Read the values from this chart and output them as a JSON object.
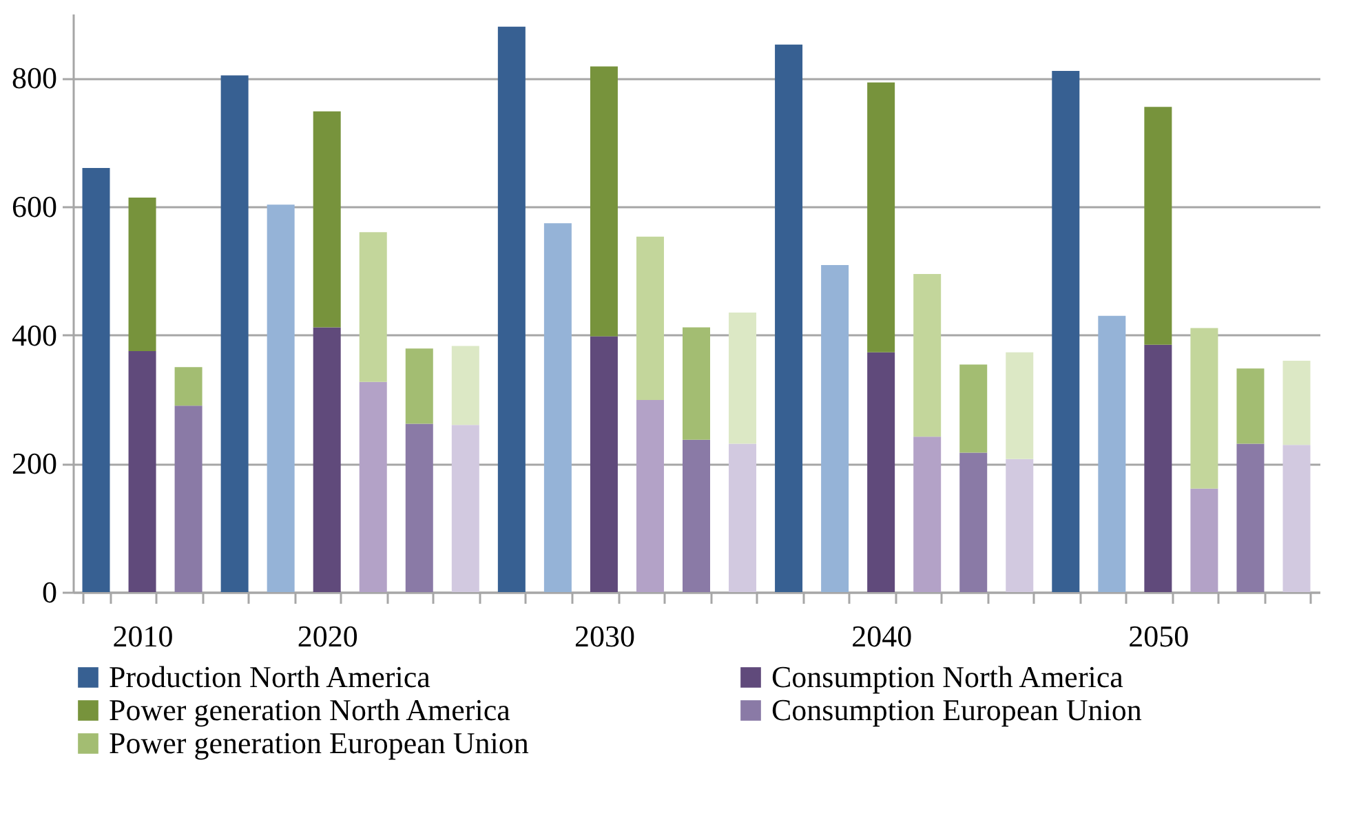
{
  "chart_data": {
    "type": "bar",
    "stacked": true,
    "categories": [
      null,
      "2010",
      null,
      null,
      null,
      "2020",
      null,
      null,
      null,
      null,
      null,
      "2030",
      null,
      null,
      null,
      null,
      null,
      "2040",
      null,
      null,
      null,
      null,
      null,
      "2050",
      null,
      null,
      null
    ],
    "ylim": [
      0,
      900
    ],
    "yticks": [
      0,
      200,
      400,
      600,
      800
    ],
    "grid": "y",
    "legend": "bottom",
    "series": [
      {
        "name": "Production North America",
        "color": "#376092",
        "values": [
          660,
          null,
          null,
          804,
          null,
          null,
          null,
          null,
          null,
          880,
          null,
          null,
          null,
          null,
          null,
          852,
          null,
          null,
          null,
          null,
          null,
          811,
          null,
          null,
          null,
          null,
          null
        ]
      },
      {
        "color": "#95b3d7",
        "values": [
          null,
          null,
          null,
          null,
          603,
          null,
          null,
          null,
          null,
          null,
          574,
          null,
          null,
          null,
          null,
          null,
          509,
          null,
          null,
          null,
          null,
          null,
          430,
          null,
          null,
          null,
          null
        ]
      },
      {
        "name": "Consumption North America",
        "color": "#604a7b",
        "values": [
          null,
          375,
          null,
          null,
          null,
          412,
          null,
          null,
          null,
          null,
          null,
          398,
          null,
          null,
          null,
          null,
          null,
          373,
          null,
          null,
          null,
          null,
          null,
          385,
          null,
          null,
          null
        ]
      },
      {
        "name": "Power generation North America",
        "color": "#77933c",
        "values": [
          null,
          239,
          null,
          null,
          null,
          336,
          null,
          null,
          null,
          null,
          null,
          420,
          null,
          null,
          null,
          null,
          null,
          420,
          null,
          null,
          null,
          null,
          null,
          370,
          null,
          null,
          null
        ]
      },
      {
        "color": "#b3a2c7",
        "values": [
          null,
          null,
          null,
          null,
          null,
          null,
          327,
          null,
          null,
          null,
          null,
          null,
          299,
          null,
          null,
          null,
          null,
          null,
          242,
          null,
          null,
          null,
          null,
          null,
          161,
          null,
          null
        ]
      },
      {
        "color": "#c3d69b",
        "values": [
          null,
          null,
          null,
          null,
          null,
          null,
          233,
          null,
          null,
          null,
          null,
          null,
          254,
          null,
          null,
          null,
          null,
          null,
          253,
          null,
          null,
          null,
          null,
          null,
          250,
          null,
          null
        ]
      },
      {
        "name": "Consumption European Union",
        "color": "#8a7aa6",
        "values": [
          null,
          null,
          290,
          null,
          null,
          null,
          null,
          262,
          null,
          null,
          null,
          null,
          null,
          237,
          null,
          null,
          null,
          null,
          null,
          217,
          null,
          null,
          null,
          null,
          null,
          231,
          null
        ]
      },
      {
        "name": "Power generation European Union",
        "color": "#a3bd72",
        "values": [
          null,
          null,
          60,
          null,
          null,
          null,
          null,
          117,
          null,
          null,
          null,
          null,
          null,
          175,
          null,
          null,
          null,
          null,
          null,
          137,
          null,
          null,
          null,
          null,
          null,
          117,
          null
        ]
      },
      {
        "color": "#d2c9e0",
        "values": [
          null,
          null,
          null,
          null,
          null,
          null,
          null,
          null,
          260,
          null,
          null,
          null,
          null,
          null,
          231,
          null,
          null,
          null,
          null,
          null,
          207,
          null,
          null,
          null,
          null,
          null,
          229
        ]
      },
      {
        "color": "#dce8c5",
        "values": [
          null,
          null,
          null,
          null,
          null,
          null,
          null,
          null,
          123,
          null,
          null,
          null,
          null,
          null,
          204,
          null,
          null,
          null,
          null,
          null,
          166,
          null,
          null,
          null,
          null,
          null,
          131
        ]
      }
    ]
  }
}
